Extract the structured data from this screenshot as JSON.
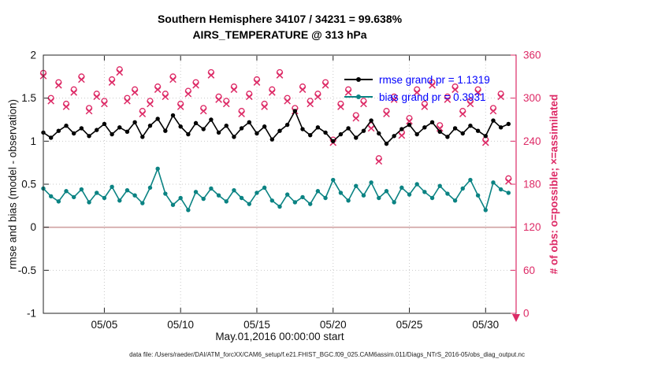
{
  "title": {
    "line1": "Southern Hemisphere 34107 / 34231 = 99.638%",
    "line2": "AIRS_TEMPERATURE @ 313 hPa"
  },
  "legend": {
    "rmse_label": "rmse grand pr = 1.1319",
    "bias_label": "bias grand pr = 0.3931"
  },
  "axis": {
    "left_label": "rmse and bias (model - observation)",
    "right_label": "# of obs: o=possible; ×=assimilated",
    "x_label": "May.01,2016 00:00:00 start"
  },
  "footer": {
    "data_file": "data file: /Users/raeder/DAI/ATM_forcXX/CAM6_setup/f.e21.FHIST_BGC.f09_025.CAM6assim.011/Diags_NTrS_2016-05/obs_diag_output.nc"
  },
  "colors": {
    "rmse": "#000000",
    "bias": "#0b8383",
    "obs": "#dd2a66",
    "zero_line": "#cfa2a2",
    "legend_text": "#0000ff",
    "grid": "#c9c9c9"
  },
  "chart_data": {
    "type": "line",
    "title": "Southern Hemisphere 34107 / 34231 = 99.638% — AIRS_TEMPERATURE @ 313 hPa",
    "xlabel": "May.01,2016 00:00:00 start",
    "ylabel_left": "rmse and bias (model - observation)",
    "ylabel_right": "# of obs: o=possible; ×=assimilated",
    "counts": {
      "assimilated": 34107,
      "possible": 34231,
      "percent": 99.638
    },
    "grand_means": {
      "rmse": 1.1319,
      "bias": 0.3931
    },
    "xlim": [
      1,
      32
    ],
    "ylim_left": [
      -1,
      2
    ],
    "ylim_right": [
      0,
      360
    ],
    "grid": true,
    "zero_line": true,
    "legend_position": "upper-right-inside",
    "xticks": {
      "values": [
        5,
        10,
        15,
        20,
        25,
        30
      ],
      "labels": [
        "05/05",
        "05/10",
        "05/15",
        "05/20",
        "05/25",
        "05/30"
      ]
    },
    "yticks_left": {
      "values": [
        -1,
        -0.5,
        0,
        0.5,
        1,
        1.5,
        2
      ],
      "labels": [
        "-1",
        "-0.5",
        "0",
        "0.5",
        "1",
        "1.5",
        "2"
      ]
    },
    "yticks_right": {
      "values": [
        0,
        60,
        120,
        180,
        240,
        300,
        360
      ],
      "labels": [
        "0",
        "60",
        "120",
        "180",
        "240",
        "300",
        "360"
      ]
    },
    "x_start_day": 1.0,
    "x_step_days": 0.5,
    "series": [
      {
        "name": "rmse",
        "axis": "left",
        "marker": "dot",
        "grand_mean": 1.1319,
        "values": [
          1.1,
          1.04,
          1.12,
          1.18,
          1.09,
          1.15,
          1.06,
          1.13,
          1.2,
          1.08,
          1.16,
          1.11,
          1.22,
          1.05,
          1.18,
          1.26,
          1.12,
          1.3,
          1.17,
          1.08,
          1.21,
          1.14,
          1.25,
          1.1,
          1.18,
          1.05,
          1.15,
          1.22,
          1.09,
          1.17,
          1.02,
          1.12,
          1.19,
          1.35,
          1.14,
          1.07,
          1.16,
          1.1,
          1.0,
          1.08,
          1.15,
          1.04,
          1.12,
          1.24,
          1.09,
          0.97,
          1.06,
          1.14,
          1.19,
          1.08,
          1.16,
          1.22,
          1.11,
          1.05,
          1.15,
          1.09,
          1.18,
          1.12,
          1.06,
          1.24,
          1.16,
          1.2
        ]
      },
      {
        "name": "bias",
        "axis": "left",
        "marker": "dot",
        "grand_mean": 0.3931,
        "values": [
          0.45,
          0.36,
          0.3,
          0.42,
          0.35,
          0.44,
          0.29,
          0.4,
          0.34,
          0.47,
          0.31,
          0.43,
          0.37,
          0.28,
          0.46,
          0.68,
          0.39,
          0.26,
          0.34,
          0.2,
          0.41,
          0.33,
          0.45,
          0.37,
          0.3,
          0.43,
          0.34,
          0.27,
          0.4,
          0.46,
          0.31,
          0.24,
          0.38,
          0.29,
          0.35,
          0.27,
          0.42,
          0.34,
          0.55,
          0.4,
          0.31,
          0.48,
          0.37,
          0.52,
          0.34,
          0.42,
          0.29,
          0.46,
          0.38,
          0.5,
          0.41,
          0.34,
          0.48,
          0.39,
          0.31,
          0.45,
          0.55,
          0.37,
          0.2,
          0.52,
          0.44,
          0.4
        ]
      },
      {
        "name": "obs_possible",
        "axis": "right",
        "marker": "o",
        "values": [
          335,
          300,
          322,
          292,
          312,
          330,
          286,
          306,
          296,
          326,
          340,
          300,
          312,
          282,
          296,
          316,
          306,
          330,
          292,
          310,
          322,
          286,
          336,
          302,
          296,
          316,
          282,
          306,
          326,
          292,
          312,
          336,
          300,
          286,
          316,
          296,
          306,
          322,
          242,
          292,
          312,
          276,
          296,
          262,
          216,
          282,
          302,
          252,
          272,
          312,
          292,
          322,
          262,
          302,
          316,
          282,
          296,
          312,
          242,
          286,
          306,
          188
        ]
      },
      {
        "name": "obs_assimilated",
        "axis": "right",
        "marker": "x",
        "values": [
          331,
          296,
          318,
          288,
          308,
          326,
          282,
          302,
          292,
          322,
          336,
          296,
          308,
          278,
          292,
          312,
          302,
          326,
          288,
          306,
          318,
          282,
          332,
          298,
          292,
          312,
          278,
          302,
          322,
          288,
          308,
          332,
          296,
          282,
          312,
          292,
          302,
          318,
          238,
          288,
          308,
          272,
          292,
          258,
          212,
          278,
          298,
          248,
          268,
          308,
          288,
          318,
          258,
          298,
          312,
          278,
          292,
          308,
          238,
          282,
          302,
          184
        ]
      }
    ]
  }
}
